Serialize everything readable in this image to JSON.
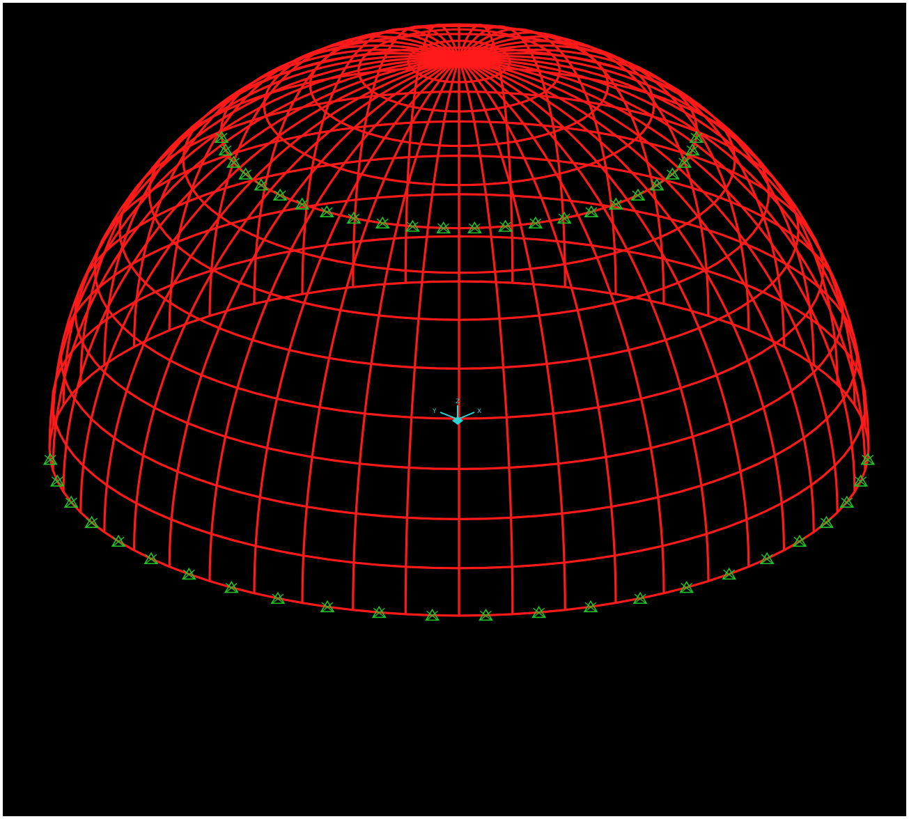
{
  "viewport": {
    "background_color": "#000000",
    "frame_color": "#ff1a1a",
    "support_color": "#22c32a",
    "axis_color": "#2fd3d3"
  },
  "model": {
    "type": "geodesic-dome-frame",
    "meridian_count": 48,
    "ring_count_upper": 4,
    "ring_count_lower": 8,
    "support_ring_upper_count": 48,
    "support_ring_base_count": 48
  },
  "axis_triad": {
    "label_x": "X",
    "label_y": "Y",
    "label_z": "Z"
  }
}
